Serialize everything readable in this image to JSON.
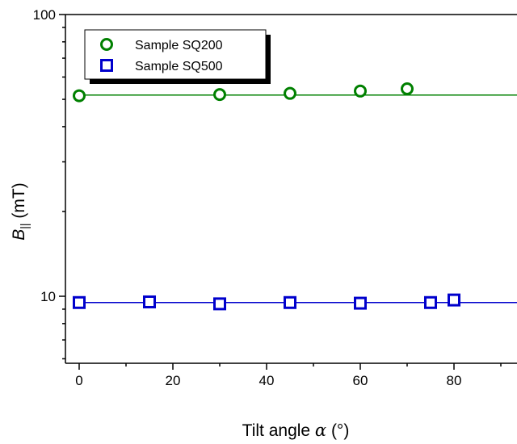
{
  "chart_data": {
    "type": "scatter",
    "title": "",
    "xlabel": "Tilt angle α (°)",
    "xlabel_prefix": "Tilt angle ",
    "xlabel_symbol": "α",
    "xlabel_suffix": " (°)",
    "ylabel": "B|| (mT)",
    "ylabel_symbol": "B",
    "ylabel_subscript": "||",
    "ylabel_suffix": " (mT)",
    "xlim": [
      -3,
      90
    ],
    "ylim": [
      5,
      100
    ],
    "yscale": "log",
    "x_ticks": [
      0,
      20,
      40,
      60,
      80
    ],
    "x_tick_labels": [
      "0",
      "20",
      "40",
      "60",
      "80"
    ],
    "y_ticks": [
      10,
      100
    ],
    "y_tick_labels": [
      "10",
      "100"
    ],
    "grid": false,
    "legend_position": "top-left",
    "series": [
      {
        "name": "Sample SQ200",
        "marker": "circle",
        "color": "#008000",
        "x": [
          0,
          30,
          45,
          60,
          70
        ],
        "y": [
          51.5,
          52.0,
          52.5,
          53.5,
          54.5
        ],
        "fit_y": 51.8
      },
      {
        "name": "Sample SQ500",
        "marker": "square",
        "color": "#0000cc",
        "x": [
          0,
          15,
          30,
          45,
          60,
          75,
          80
        ],
        "y": [
          9.5,
          9.55,
          9.4,
          9.5,
          9.45,
          9.5,
          9.7
        ],
        "fit_y": 9.5
      }
    ]
  }
}
